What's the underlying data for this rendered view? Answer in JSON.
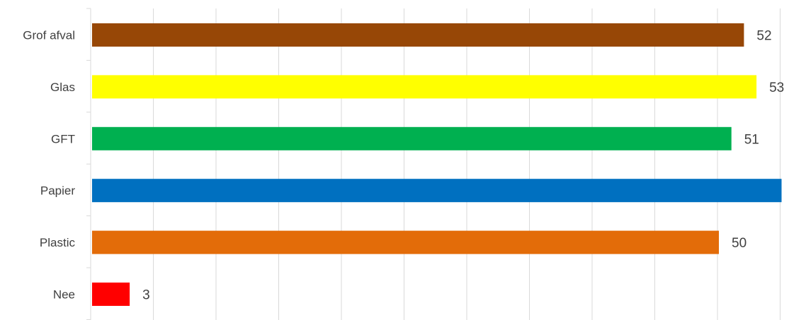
{
  "chart_data": {
    "type": "bar",
    "orientation": "horizontal",
    "categories": [
      "Grof afval",
      "Glas",
      "GFT",
      "Papier",
      "Plastic",
      "Nee"
    ],
    "values": [
      52,
      53,
      51,
      55,
      50,
      3
    ],
    "colors": [
      "#974706",
      "#FFFF00",
      "#00B050",
      "#0070C0",
      "#E36C09",
      "#FF0000"
    ],
    "xlim": [
      0,
      55
    ],
    "grid": true,
    "data_labels": true,
    "legend": "none"
  }
}
